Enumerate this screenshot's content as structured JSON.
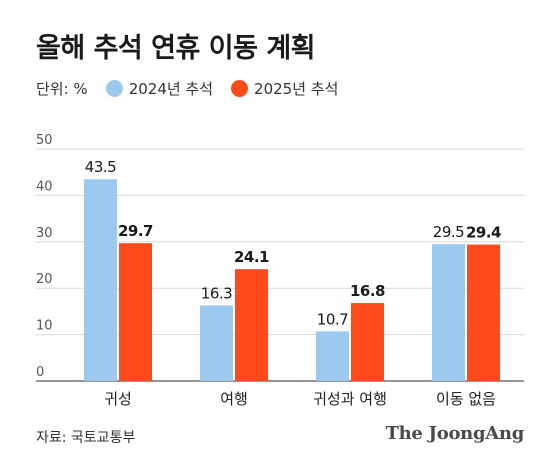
{
  "title": "올해 추석 연휴 이동 계획",
  "legend": {
    "unit_label": "단위: %"
  },
  "source": "자료: 국토교통부",
  "brand": "The JoongAng",
  "chart_data": {
    "type": "bar",
    "title": "올해 추석 연휴 이동 계획",
    "unit": "단위: %",
    "categories": [
      "귀성",
      "여행",
      "귀성과 여행",
      "이동 없음"
    ],
    "series": [
      {
        "name": "2024년 추석",
        "values": [
          43.5,
          16.3,
          10.7,
          29.5
        ],
        "color": "#9ec9ee",
        "label_bold": false
      },
      {
        "name": "2025년 추석",
        "values": [
          29.7,
          24.1,
          16.8,
          29.4
        ],
        "color": "#ff4a1c",
        "label_bold": true
      }
    ],
    "ylim": [
      0,
      50
    ],
    "yticks": [
      0,
      10,
      20,
      30,
      40,
      50
    ],
    "grid": true,
    "legend_position": "top-left"
  }
}
